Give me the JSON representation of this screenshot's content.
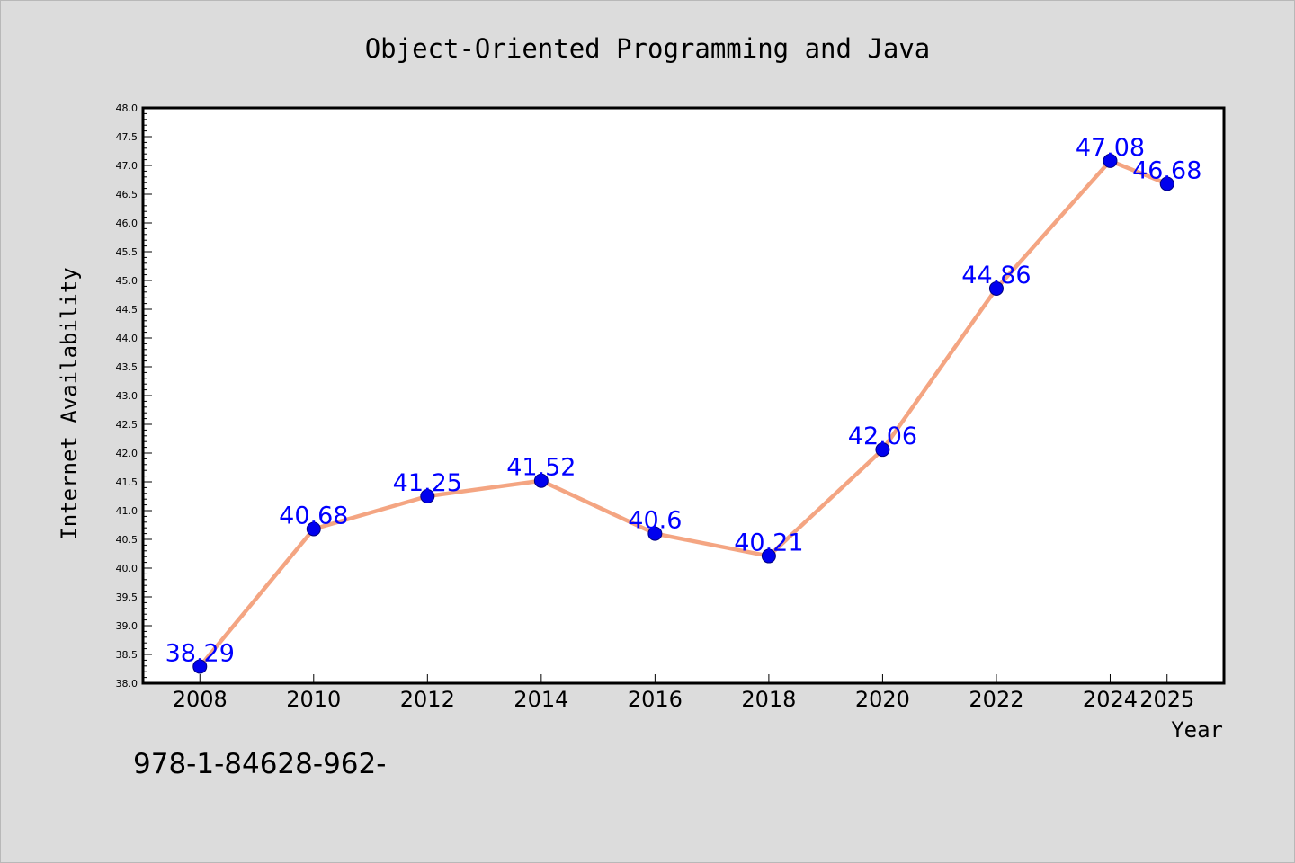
{
  "chart_data": {
    "type": "line",
    "title": "Object-Oriented Programming and Java",
    "xlabel": "Year",
    "ylabel": "Internet Availability",
    "categories": [
      "2008",
      "2010",
      "2012",
      "2014",
      "2016",
      "2018",
      "2020",
      "2022",
      "2024",
      "2025"
    ],
    "series": [
      {
        "values": [
          38.29,
          40.68,
          41.25,
          41.52,
          40.6,
          40.21,
          42.06,
          44.86,
          47.08,
          46.68
        ],
        "labels": [
          "38.29",
          "40.68",
          "41.25",
          "41.52",
          "40.6",
          "40.21",
          "42.06",
          "44.86",
          "47.08",
          "46.68"
        ]
      }
    ],
    "ylim": [
      38.0,
      48.0
    ],
    "yticks": [
      "38.0",
      "38.5",
      "39.0",
      "39.5",
      "40.0",
      "40.5",
      "41.0",
      "41.5",
      "42.0",
      "42.5",
      "43.0",
      "43.5",
      "44.0",
      "44.5",
      "45.0",
      "45.5",
      "46.0",
      "46.5",
      "47.0",
      "47.5",
      "48.0"
    ],
    "grid": false,
    "legend": "none",
    "colors": {
      "line": "#f4a582",
      "marker": "#0000ee",
      "marker_edge": "#000080",
      "data_label": "#0000ff",
      "plot_background": "#ffffff",
      "figure_background": "#dcdcdc"
    }
  },
  "footer": {
    "text": "978-1-84628-962-"
  }
}
